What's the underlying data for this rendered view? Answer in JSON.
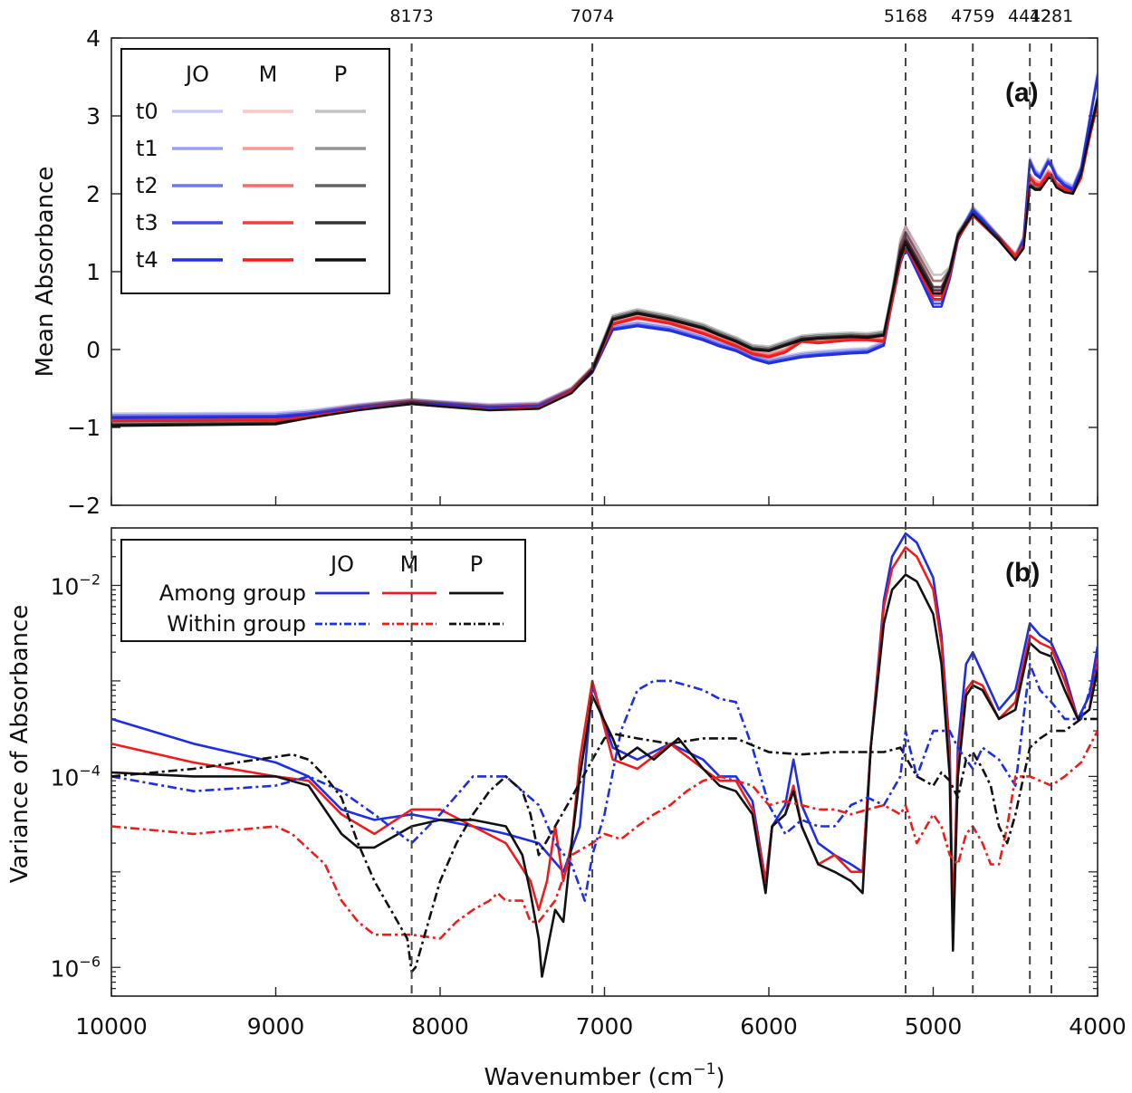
{
  "colors": {
    "JO": "#1f2fe0",
    "M": "#ee1c1c",
    "P": "#111111",
    "axis": "#222222",
    "peak_line": "#444444"
  },
  "x_axis": {
    "label_main": "Wavenumber (cm",
    "label_sup": "−1",
    "label_close": ")",
    "range": [
      10000,
      4000
    ],
    "reversed": true,
    "ticks": [
      10000,
      9000,
      8000,
      7000,
      6000,
      5000,
      4000
    ]
  },
  "peak_markers": [
    "8173",
    "7074",
    "5168",
    "4759",
    "4412",
    "4281"
  ],
  "chart_data": [
    {
      "type": "line",
      "panel_label": "(a)",
      "ylabel": "Mean Absorbance",
      "xlabel": "",
      "ylim": [
        -2,
        4
      ],
      "yticks": [
        4,
        3,
        2,
        1,
        0,
        -1,
        -2
      ],
      "legend": {
        "placement": "top-left",
        "columns": [
          "JO",
          "M",
          "P"
        ],
        "rows": [
          "t0",
          "t1",
          "t2",
          "t3",
          "t4"
        ]
      },
      "x": [
        10000,
        9000,
        8800,
        8500,
        8173,
        8000,
        7700,
        7400,
        7200,
        7074,
        6950,
        6800,
        6600,
        6400,
        6300,
        6200,
        6100,
        6000,
        5900,
        5800,
        5700,
        5500,
        5400,
        5300,
        5250,
        5200,
        5168,
        5100,
        5000,
        4950,
        4900,
        4850,
        4759,
        4700,
        4600,
        4500,
        4450,
        4412,
        4380,
        4350,
        4300,
        4281,
        4250,
        4200,
        4150,
        4100,
        4050,
        4000
      ],
      "series": [
        {
          "name": "JO",
          "values": [
            -0.88,
            -0.87,
            -0.84,
            -0.76,
            -0.7,
            -0.72,
            -0.76,
            -0.74,
            -0.55,
            -0.3,
            0.25,
            0.3,
            0.24,
            0.12,
            0.04,
            -0.02,
            -0.12,
            -0.18,
            -0.14,
            -0.1,
            -0.08,
            -0.05,
            -0.04,
            0.05,
            0.6,
            1.1,
            1.3,
            1.0,
            0.55,
            0.55,
            0.9,
            1.4,
            1.78,
            1.65,
            1.4,
            1.15,
            1.4,
            2.4,
            2.25,
            2.2,
            2.4,
            2.35,
            2.2,
            2.1,
            2.05,
            2.3,
            2.9,
            3.5
          ]
        },
        {
          "name": "M",
          "values": [
            -0.92,
            -0.91,
            -0.86,
            -0.77,
            -0.7,
            -0.73,
            -0.77,
            -0.75,
            -0.55,
            -0.28,
            0.32,
            0.4,
            0.33,
            0.2,
            0.12,
            0.04,
            -0.06,
            -0.1,
            -0.04,
            0.1,
            0.08,
            0.12,
            0.12,
            0.1,
            0.6,
            1.12,
            1.34,
            1.05,
            0.65,
            0.65,
            0.95,
            1.42,
            1.72,
            1.6,
            1.4,
            1.18,
            1.35,
            2.2,
            2.12,
            2.1,
            2.25,
            2.22,
            2.1,
            2.05,
            2.0,
            2.2,
            2.7,
            3.15
          ]
        },
        {
          "name": "P",
          "values": [
            -0.98,
            -0.96,
            -0.88,
            -0.78,
            -0.7,
            -0.73,
            -0.78,
            -0.76,
            -0.56,
            -0.28,
            0.38,
            0.46,
            0.38,
            0.27,
            0.18,
            0.1,
            0.0,
            -0.02,
            0.05,
            0.12,
            0.14,
            0.16,
            0.15,
            0.18,
            0.7,
            1.18,
            1.35,
            1.1,
            0.72,
            0.72,
            1.0,
            1.45,
            1.74,
            1.62,
            1.4,
            1.15,
            1.3,
            2.1,
            2.05,
            2.05,
            2.2,
            2.2,
            2.08,
            2.02,
            2.0,
            2.25,
            2.75,
            3.2
          ]
        }
      ]
    },
    {
      "type": "line",
      "panel_label": "(b)",
      "ylabel": "Variance of Absorbance",
      "xlabel": "Wavenumber (cm−1)",
      "yscale": "log",
      "ylim": [
        5e-07,
        0.04
      ],
      "yticks": [
        {
          "value": 0.01,
          "label": "10",
          "exp": "−2"
        },
        {
          "value": 0.0001,
          "label": "10",
          "exp": "−4"
        },
        {
          "value": 1e-06,
          "label": "10",
          "exp": "−6"
        }
      ],
      "legend": {
        "placement": "top-left",
        "columns": [
          "JO",
          "M",
          "P"
        ],
        "rows": [
          "Among group",
          "Within group"
        ]
      },
      "series": [
        {
          "name": "JO Among group",
          "x": [
            10000,
            9500,
            9000,
            8800,
            8600,
            8400,
            8173,
            8000,
            7800,
            7600,
            7400,
            7250,
            7150,
            7074,
            6950,
            6800,
            6600,
            6400,
            6300,
            6200,
            6100,
            6020,
            5980,
            5900,
            5850,
            5800,
            5700,
            5600,
            5500,
            5430,
            5380,
            5300,
            5250,
            5168,
            5100,
            5000,
            4950,
            4900,
            4880,
            4850,
            4800,
            4759,
            4700,
            4600,
            4500,
            4412,
            4350,
            4281,
            4200,
            4120,
            4050,
            4000
          ],
          "values": [
            0.0004,
            0.00022,
            0.00014,
            0.0001,
            4.5e-05,
            3.5e-05,
            4e-05,
            3.5e-05,
            3e-05,
            2.5e-05,
            2e-05,
            1e-05,
            3e-05,
            0.0009,
            0.0002,
            0.00015,
            0.00022,
            0.00015,
            0.0001,
            0.0001,
            5.5e-05,
            8e-06,
            3e-05,
            5e-05,
            0.00015,
            5e-05,
            2e-05,
            1.5e-05,
            1.2e-05,
            1e-05,
            0.0002,
            0.007,
            0.02,
            0.035,
            0.028,
            0.012,
            0.003,
            0.0002,
            2e-06,
            0.0002,
            0.0015,
            0.002,
            0.0012,
            0.0005,
            0.0008,
            0.004,
            0.003,
            0.0025,
            0.0012,
            0.0004,
            0.0007,
            0.0023
          ]
        },
        {
          "name": "M Among group",
          "x": [
            10000,
            9500,
            9000,
            8800,
            8600,
            8400,
            8173,
            8000,
            7800,
            7600,
            7450,
            7400,
            7350,
            7300,
            7250,
            7200,
            7150,
            7074,
            6950,
            6800,
            6600,
            6400,
            6300,
            6200,
            6100,
            6020,
            5980,
            5900,
            5850,
            5800,
            5700,
            5600,
            5500,
            5430,
            5380,
            5300,
            5250,
            5168,
            5100,
            5000,
            4950,
            4900,
            4880,
            4850,
            4800,
            4759,
            4700,
            4600,
            4500,
            4412,
            4350,
            4281,
            4200,
            4120,
            4050,
            4000
          ],
          "values": [
            0.00022,
            0.00014,
            0.0001,
            9e-05,
            4e-05,
            2.5e-05,
            4.5e-05,
            4.5e-05,
            3e-05,
            2e-05,
            8e-06,
            4e-06,
            8e-06,
            3e-05,
            8e-06,
            2e-05,
            0.00015,
            0.001,
            0.00015,
            0.00012,
            0.00022,
            0.00012,
            9e-05,
            9e-05,
            4.5e-05,
            8e-06,
            3e-05,
            4e-05,
            8e-05,
            3e-05,
            1.2e-05,
            1.5e-05,
            1e-05,
            1e-05,
            0.0002,
            0.006,
            0.015,
            0.025,
            0.02,
            0.009,
            0.0025,
            0.00015,
            3e-06,
            0.00015,
            0.0008,
            0.001,
            0.0009,
            0.0004,
            0.0006,
            0.003,
            0.0025,
            0.0022,
            0.001,
            0.0004,
            0.0005,
            0.0017
          ]
        },
        {
          "name": "P Among group",
          "x": [
            10000,
            9500,
            9000,
            8800,
            8600,
            8500,
            8400,
            8173,
            8000,
            7800,
            7600,
            7500,
            7450,
            7400,
            7380,
            7300,
            7250,
            7200,
            7150,
            7074,
            6950,
            6900,
            6800,
            6700,
            6550,
            6400,
            6300,
            6200,
            6100,
            6020,
            5980,
            5900,
            5850,
            5800,
            5700,
            5600,
            5500,
            5430,
            5380,
            5300,
            5250,
            5168,
            5100,
            5000,
            4950,
            4900,
            4880,
            4850,
            4800,
            4759,
            4700,
            4600,
            4500,
            4412,
            4350,
            4281,
            4200,
            4120,
            4050,
            4000
          ],
          "values": [
            0.00011,
            0.0001,
            0.0001,
            8e-05,
            2.5e-05,
            1.8e-05,
            1.8e-05,
            3e-05,
            3.5e-05,
            3.5e-05,
            3e-05,
            1.5e-05,
            6e-06,
            2e-06,
            8e-07,
            4e-06,
            3e-06,
            2e-05,
            0.0001,
            0.0007,
            0.00025,
            0.00015,
            0.0002,
            0.00015,
            0.00025,
            0.00012,
            8e-05,
            7e-05,
            4e-05,
            6e-06,
            3e-05,
            4e-05,
            7e-05,
            3e-05,
            1.2e-05,
            1e-05,
            8e-06,
            6e-06,
            0.0002,
            0.004,
            0.009,
            0.013,
            0.011,
            0.005,
            0.0015,
            0.0001,
            1.5e-06,
            0.0001,
            0.0007,
            0.0009,
            0.0008,
            0.0004,
            0.0005,
            0.0025,
            0.002,
            0.0018,
            0.0008,
            0.0004,
            0.0005,
            0.0013
          ]
        },
        {
          "name": "JO Within group",
          "x": [
            10000,
            9500,
            9000,
            8800,
            8600,
            8400,
            8173,
            8000,
            7800,
            7600,
            7400,
            7300,
            7200,
            7120,
            7074,
            7000,
            6900,
            6800,
            6700,
            6600,
            6500,
            6400,
            6300,
            6200,
            6100,
            6000,
            5900,
            5800,
            5700,
            5600,
            5500,
            5400,
            5300,
            5200,
            5168,
            5100,
            5000,
            4900,
            4850,
            4800,
            4759,
            4700,
            4600,
            4500,
            4412,
            4350,
            4281,
            4200,
            4100,
            4000
          ],
          "values": [
            0.0001,
            7e-05,
            8e-05,
            0.0001,
            7e-05,
            4e-05,
            2e-05,
            4e-05,
            0.0001,
            0.0001,
            5e-05,
            2e-05,
            1.2e-05,
            5e-06,
            1.5e-05,
            4e-05,
            0.0003,
            0.0008,
            0.001,
            0.001,
            0.0009,
            0.0008,
            0.00065,
            0.0006,
            0.0002,
            5e-05,
            2.5e-05,
            3.5e-05,
            3e-05,
            3e-05,
            5e-05,
            6e-05,
            5e-05,
            0.0001,
            0.0003,
            0.0001,
            0.0003,
            0.0003,
            0.0002,
            0.00015,
            0.00012,
            0.0002,
            0.00015,
            8e-05,
            0.0015,
            0.0008,
            0.0006,
            0.0004,
            0.0004,
            0.0015
          ]
        },
        {
          "name": "M Within group",
          "x": [
            10000,
            9500,
            9000,
            8900,
            8700,
            8600,
            8500,
            8400,
            8173,
            8000,
            7900,
            7800,
            7700,
            7650,
            7600,
            7500,
            7450,
            7400,
            7300,
            7200,
            7074,
            7000,
            6900,
            6800,
            6700,
            6600,
            6500,
            6400,
            6300,
            6200,
            6100,
            6000,
            5900,
            5800,
            5700,
            5600,
            5500,
            5400,
            5300,
            5200,
            5168,
            5100,
            5000,
            4950,
            4900,
            4850,
            4800,
            4759,
            4700,
            4650,
            4600,
            4550,
            4500,
            4412,
            4350,
            4281,
            4200,
            4100,
            4000
          ],
          "values": [
            3e-05,
            2.5e-05,
            3e-05,
            2.5e-05,
            1.2e-05,
            5e-06,
            3e-06,
            2.2e-06,
            2.2e-06,
            2e-06,
            3e-06,
            4e-06,
            5e-06,
            6e-06,
            5e-06,
            5e-06,
            3e-06,
            3e-06,
            5e-06,
            1.5e-05,
            2e-05,
            2.5e-05,
            2.2e-05,
            3e-05,
            4e-05,
            5e-05,
            7e-05,
            9e-05,
            0.0001,
            9e-05,
            8e-05,
            5e-05,
            5.5e-05,
            5e-05,
            4.5e-05,
            4.5e-05,
            4e-05,
            4.5e-05,
            5e-05,
            4e-05,
            5e-05,
            2e-05,
            4e-05,
            3e-05,
            1.5e-05,
            1.2e-05,
            2.5e-05,
            3e-05,
            2e-05,
            1.2e-05,
            1.2e-05,
            3e-05,
            0.0001,
            0.0001,
            9e-05,
            8e-05,
            0.0001,
            0.00014,
            0.0003
          ]
        },
        {
          "name": "P Within group",
          "x": [
            10000,
            9500,
            9000,
            8900,
            8800,
            8700,
            8600,
            8500,
            8400,
            8300,
            8200,
            8173,
            8150,
            8100,
            8000,
            7900,
            7800,
            7700,
            7600,
            7500,
            7450,
            7400,
            7300,
            7200,
            7074,
            7000,
            6950,
            6800,
            6600,
            6400,
            6200,
            6000,
            5800,
            5600,
            5400,
            5300,
            5200,
            5100,
            5000,
            4950,
            4900,
            4850,
            4800,
            4759,
            4700,
            4650,
            4600,
            4550,
            4500,
            4412,
            4350,
            4281,
            4200,
            4100,
            4000
          ],
          "values": [
            0.0001,
            0.00012,
            0.00016,
            0.00017,
            0.00015,
            0.0001,
            6e-05,
            2e-05,
            8e-06,
            4e-06,
            2e-06,
            9e-07,
            1e-06,
            2e-06,
            8e-06,
            2e-05,
            4e-05,
            7e-05,
            0.0001,
            7e-05,
            4e-05,
            1.5e-05,
            3e-05,
            6e-05,
            0.00015,
            0.00025,
            0.00028,
            0.00025,
            0.00022,
            0.00025,
            0.00025,
            0.00018,
            0.00017,
            0.00018,
            0.00018,
            0.00018,
            0.0002,
            0.0001,
            8e-05,
            0.00011,
            9e-05,
            6e-05,
            0.00015,
            0.00018,
            0.00012,
            8e-05,
            3e-05,
            2e-05,
            4e-05,
            0.0002,
            0.00025,
            0.0003,
            0.0003,
            0.0004,
            0.0004
          ]
        }
      ]
    }
  ]
}
